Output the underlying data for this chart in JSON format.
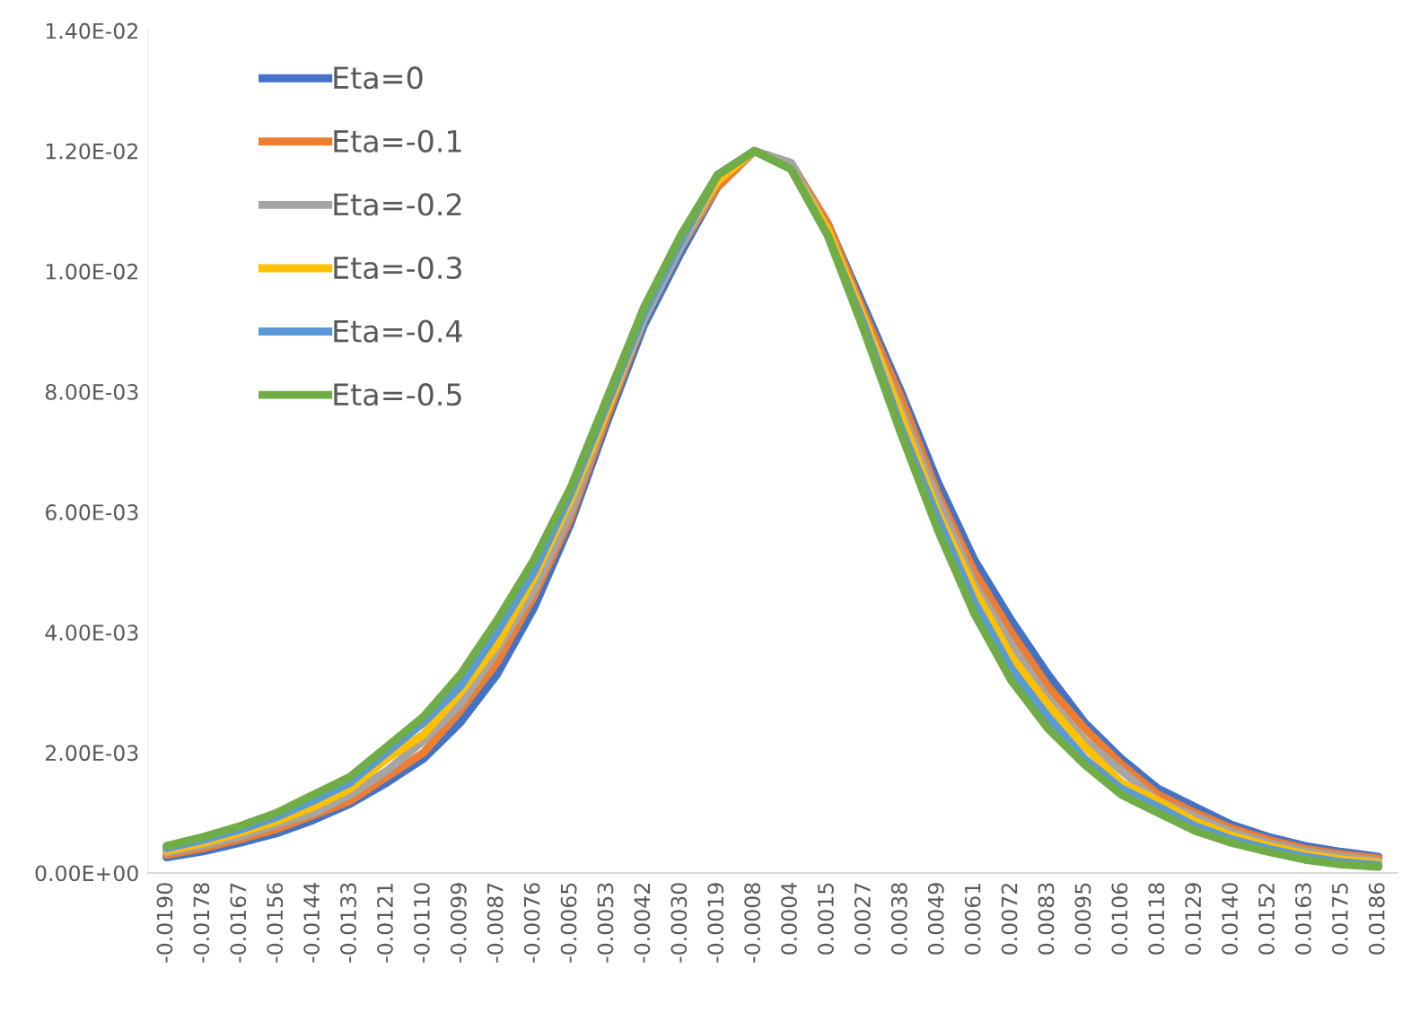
{
  "chart_data": {
    "type": "line",
    "categories": [
      "-0.0190",
      "-0.0178",
      "-0.0167",
      "-0.0156",
      "-0.0144",
      "-0.0133",
      "-0.0121",
      "-0.0110",
      "-0.0099",
      "-0.0087",
      "-0.0076",
      "-0.0065",
      "-0.0053",
      "-0.0042",
      "-0.0030",
      "-0.0019",
      "-0.0008",
      "0.0004",
      "0.0015",
      "0.0027",
      "0.0038",
      "0.0049",
      "0.0061",
      "0.0072",
      "0.0083",
      "0.0095",
      "0.0106",
      "0.0118",
      "0.0129",
      "0.0140",
      "0.0152",
      "0.0163",
      "0.0175",
      "0.0186"
    ],
    "series": [
      {
        "name": "Eta=0",
        "color": "#4472c4",
        "values": [
          0.00026,
          0.00036,
          0.0005,
          0.00066,
          0.00088,
          0.00115,
          0.0015,
          0.0019,
          0.0025,
          0.0033,
          0.0044,
          0.0058,
          0.0075,
          0.0091,
          0.0103,
          0.0114,
          0.012,
          0.0118,
          0.0108,
          0.0094,
          0.008,
          0.0065,
          0.0052,
          0.0042,
          0.0033,
          0.0025,
          0.0019,
          0.0014,
          0.0011,
          0.0008,
          0.0006,
          0.00045,
          0.00035,
          0.00027
        ]
      },
      {
        "name": "Eta=-0.1",
        "color": "#ed7d31",
        "values": [
          0.0003,
          0.00041,
          0.00056,
          0.00073,
          0.00096,
          0.0012,
          0.0016,
          0.002,
          0.0027,
          0.0035,
          0.0046,
          0.0059,
          0.0076,
          0.0092,
          0.0104,
          0.0114,
          0.012,
          0.0118,
          0.0108,
          0.0093,
          0.0079,
          0.0063,
          0.005,
          0.004,
          0.0031,
          0.0024,
          0.0018,
          0.0013,
          0.001,
          0.00074,
          0.00055,
          0.0004,
          0.00031,
          0.00024
        ]
      },
      {
        "name": "Eta=-0.2",
        "color": "#a5a5a5",
        "values": [
          0.00034,
          0.00046,
          0.00061,
          0.0008,
          0.001,
          0.0013,
          0.0017,
          0.0022,
          0.0028,
          0.0037,
          0.0047,
          0.006,
          0.0077,
          0.0092,
          0.0104,
          0.0115,
          0.012,
          0.0118,
          0.0107,
          0.0092,
          0.0077,
          0.0062,
          0.0048,
          0.0038,
          0.0029,
          0.0022,
          0.0017,
          0.0012,
          0.00094,
          0.00068,
          0.0005,
          0.00036,
          0.00027,
          0.0002
        ]
      },
      {
        "name": "Eta=-0.3",
        "color": "#ffc000",
        "values": [
          0.00037,
          0.0005,
          0.00067,
          0.00086,
          0.0011,
          0.0014,
          0.0019,
          0.0023,
          0.003,
          0.0038,
          0.0049,
          0.0062,
          0.0077,
          0.0093,
          0.0105,
          0.0115,
          0.012,
          0.0117,
          0.0107,
          0.0092,
          0.0076,
          0.006,
          0.0047,
          0.0036,
          0.0028,
          0.0021,
          0.0015,
          0.0012,
          0.00086,
          0.00062,
          0.00045,
          0.00031,
          0.00022,
          0.00017
        ]
      },
      {
        "name": "Eta=-0.4",
        "color": "#5b9bd5",
        "values": [
          0.00041,
          0.00055,
          0.00072,
          0.00093,
          0.0012,
          0.0015,
          0.002,
          0.0025,
          0.0031,
          0.004,
          0.005,
          0.0063,
          0.0078,
          0.0093,
          0.0105,
          0.0116,
          0.012,
          0.0117,
          0.0106,
          0.0091,
          0.0074,
          0.0059,
          0.0045,
          0.0034,
          0.0026,
          0.0019,
          0.0014,
          0.0011,
          0.00078,
          0.00056,
          0.0004,
          0.00027,
          0.00018,
          0.00013
        ]
      },
      {
        "name": "Eta=-0.5",
        "color": "#70ad47",
        "values": [
          0.00045,
          0.0006,
          0.00078,
          0.001,
          0.0013,
          0.0016,
          0.0021,
          0.0026,
          0.0033,
          0.0042,
          0.0052,
          0.0064,
          0.0079,
          0.0094,
          0.0106,
          0.0116,
          0.012,
          0.0117,
          0.0106,
          0.009,
          0.0073,
          0.0057,
          0.0043,
          0.0032,
          0.0024,
          0.0018,
          0.0013,
          0.001,
          0.0007,
          0.0005,
          0.00035,
          0.00022,
          0.00014,
          0.0001
        ]
      }
    ],
    "ylim": [
      0,
      0.014
    ],
    "yticks": [
      {
        "value": 0,
        "label": "0.00E+00"
      },
      {
        "value": 0.002,
        "label": "2.00E-03"
      },
      {
        "value": 0.004,
        "label": "4.00E-03"
      },
      {
        "value": 0.006,
        "label": "6.00E-03"
      },
      {
        "value": 0.008,
        "label": "8.00E-03"
      },
      {
        "value": 0.01,
        "label": "1.00E-02"
      },
      {
        "value": 0.012,
        "label": "1.20E-02"
      },
      {
        "value": 0.014,
        "label": "1.40E-02"
      }
    ],
    "grid": false,
    "legend": "top left",
    "line_style": "solid",
    "marker": "none"
  }
}
